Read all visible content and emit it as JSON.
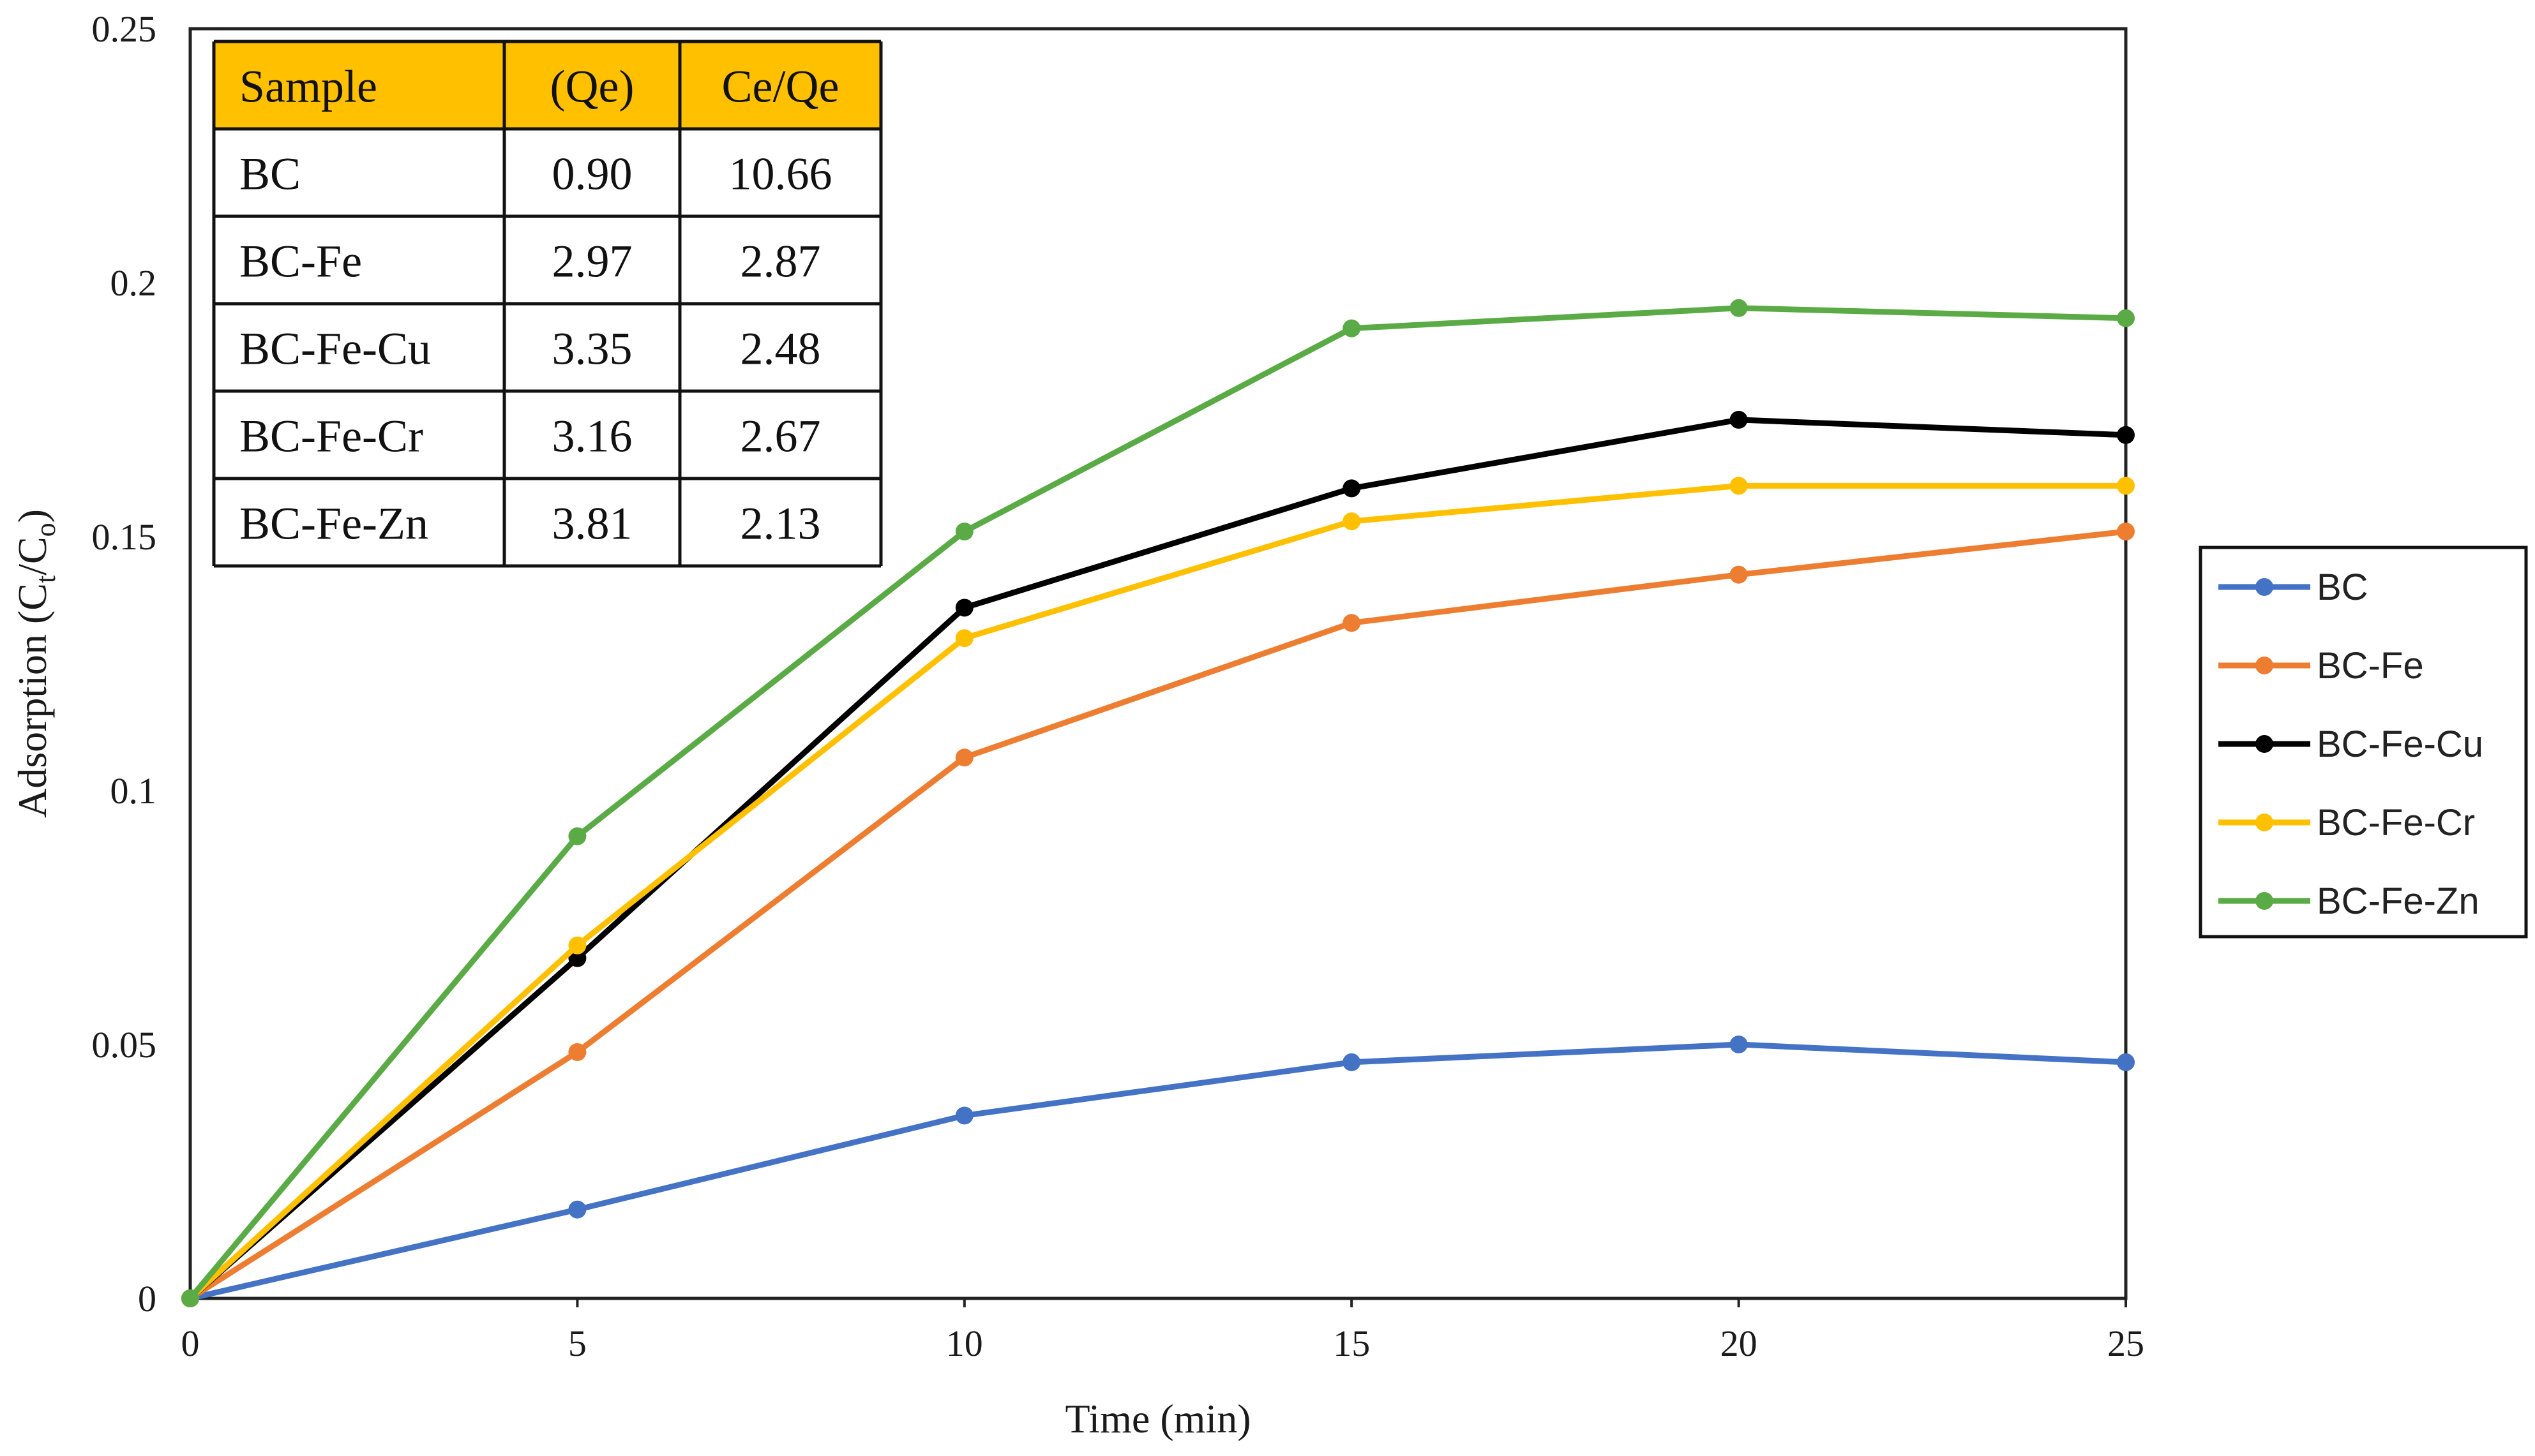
{
  "chart_data": {
    "type": "line",
    "title": "",
    "xlabel": "Time (min)",
    "ylabel": {
      "prefix": "Adsorption (C",
      "sub1": "t",
      "mid": "/C",
      "sub2": "o",
      "suffix": ")"
    },
    "xlim": [
      0,
      25
    ],
    "ylim": [
      0,
      0.25
    ],
    "x_ticks": [
      0,
      5,
      10,
      15,
      20,
      25
    ],
    "y_ticks": [
      0,
      0.05,
      0.1,
      0.15,
      0.2,
      0.25
    ],
    "x_tick_labels": [
      "0",
      "5",
      "10",
      "15",
      "20",
      "25"
    ],
    "y_tick_labels": [
      "0",
      "0.05",
      "0.1",
      "0.15",
      "0.2",
      "0.25"
    ],
    "grid": false,
    "legend_position": "right",
    "x": [
      0,
      5,
      10,
      15,
      20,
      25
    ],
    "series": [
      {
        "name": "BC",
        "color": "#4472C4",
        "values": [
          0,
          0.0175,
          0.036,
          0.0465,
          0.05,
          0.0465
        ]
      },
      {
        "name": "BC-Fe",
        "color": "#ED7D31",
        "values": [
          0,
          0.0485,
          0.1065,
          0.133,
          0.1425,
          0.151
        ]
      },
      {
        "name": "BC-Fe-Cu",
        "color": "#000000",
        "values": [
          0,
          0.067,
          0.136,
          0.1595,
          0.173,
          0.17
        ]
      },
      {
        "name": "BC-Fe-Cr",
        "color": "#FFC000",
        "values": [
          0,
          0.0695,
          0.13,
          0.153,
          0.16,
          0.16
        ]
      },
      {
        "name": "BC-Fe-Zn",
        "color": "#5AAA46",
        "values": [
          0,
          0.091,
          0.151,
          0.191,
          0.195,
          0.193
        ]
      }
    ],
    "inset_table": {
      "header_color": "#FFC000",
      "headers": [
        "Sample",
        "(Qe)",
        "Ce/Qe"
      ],
      "rows": [
        [
          "BC",
          "0.90",
          "10.66"
        ],
        [
          "BC-Fe",
          "2.97",
          "2.87"
        ],
        [
          "BC-Fe-Cu",
          "3.35",
          "2.48"
        ],
        [
          "BC-Fe-Cr",
          "3.16",
          "2.67"
        ],
        [
          "BC-Fe-Zn",
          "3.81",
          "2.13"
        ]
      ]
    }
  }
}
